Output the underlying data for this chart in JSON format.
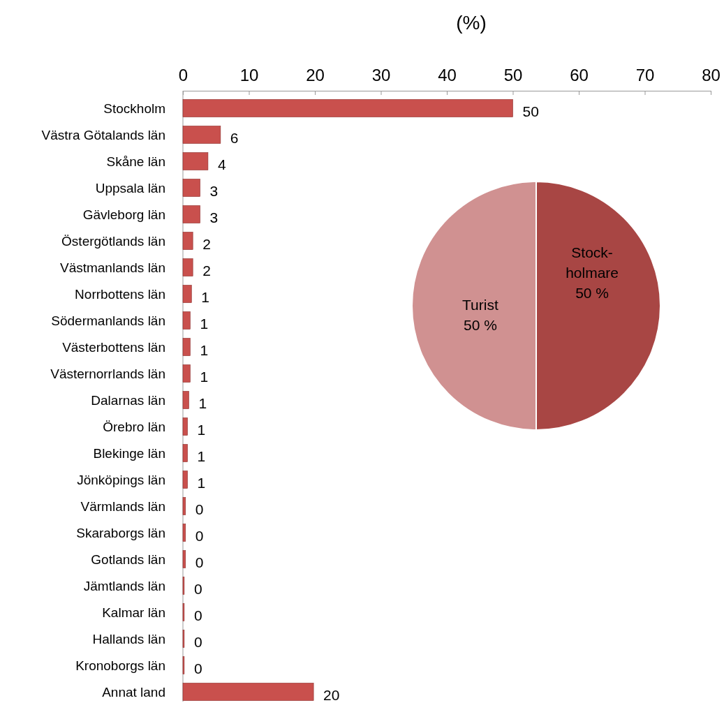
{
  "chart_data": [
    {
      "type": "bar",
      "orientation": "horizontal",
      "xlabel": "(%)",
      "categories": [
        "Stockholm",
        "Västra Götalands län",
        "Skåne län",
        "Uppsala län",
        "Gävleborg län",
        "Östergötlands län",
        "Västmanlands län",
        "Norrbottens län",
        "Södermanlands län",
        "Västerbottens län",
        "Västernorrlands län",
        "Dalarnas  län",
        "Örebro län",
        "Blekinge län",
        "Jönköpings län",
        "Värmlands län",
        "Skaraborgs län",
        "Gotlands län",
        "Jämtlands län",
        "Kalmar län",
        "Hallands län",
        "Kronoborgs län",
        "Annat land"
      ],
      "values": [
        50,
        5.7,
        3.8,
        2.6,
        2.6,
        1.5,
        1.5,
        1.3,
        1.1,
        1.1,
        1.1,
        0.9,
        0.7,
        0.7,
        0.7,
        0.4,
        0.4,
        0.4,
        0.2,
        0.2,
        0.2,
        0.2,
        19.8
      ],
      "value_labels": [
        "50",
        "6",
        "4",
        "3",
        "3",
        "2",
        "2",
        "1",
        "1",
        "1",
        "1",
        "1",
        "1",
        "1",
        "1",
        "0",
        "0",
        "0",
        "0",
        "0",
        "0",
        "0",
        "20"
      ],
      "color": "#c9504d",
      "xlim": [
        0,
        80
      ],
      "xticks": [
        0,
        10,
        20,
        30,
        40,
        50,
        60,
        70,
        80
      ],
      "grid": false
    },
    {
      "type": "pie",
      "categories": [
        "Stock-\nholmare",
        "Turist"
      ],
      "values": [
        50,
        50
      ],
      "value_labels": [
        "50 %",
        "50 %"
      ],
      "colors": [
        "#a84644",
        "#d09191"
      ]
    }
  ]
}
